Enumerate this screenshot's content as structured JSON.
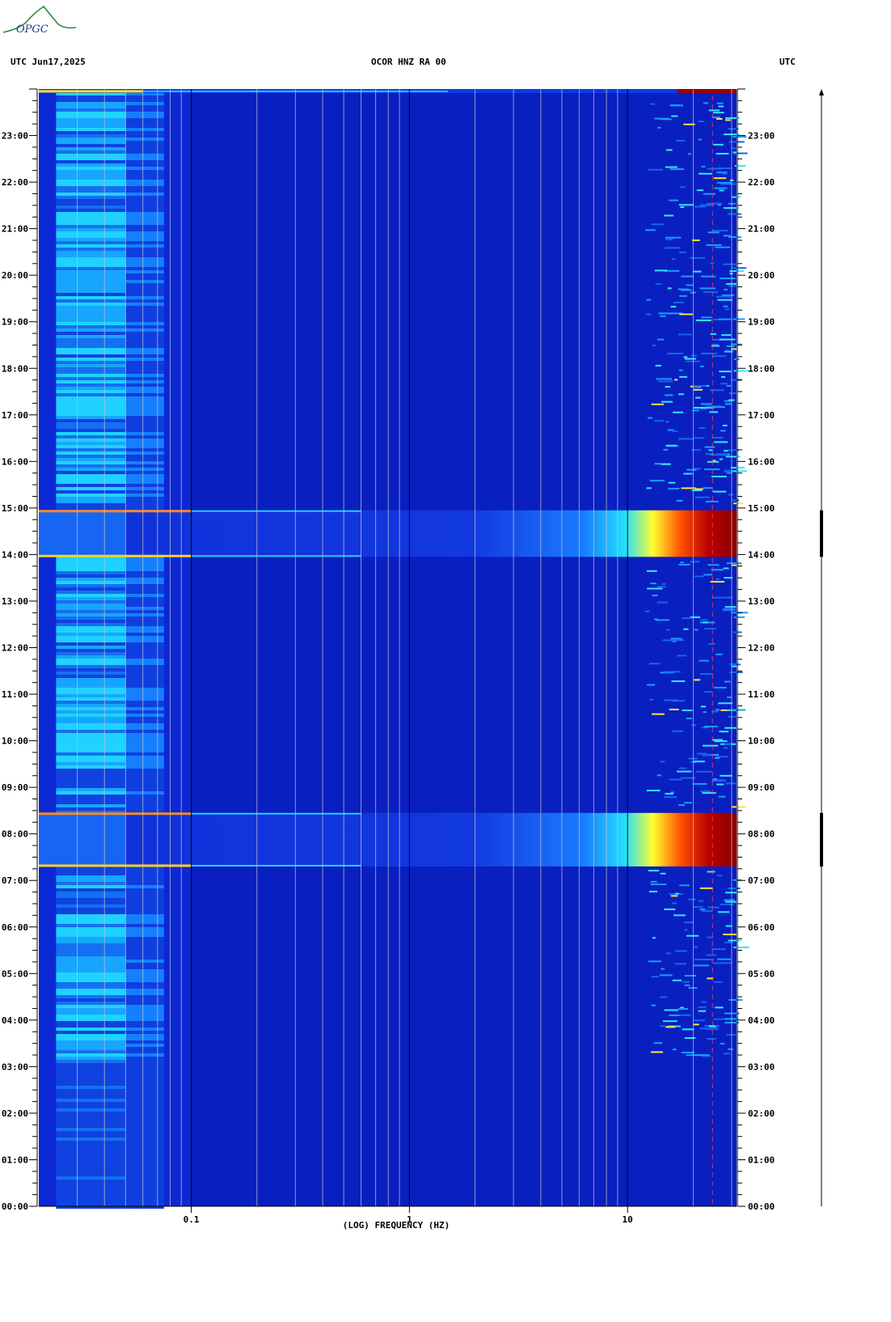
{
  "header": {
    "left": "UTC  Jun17,2025",
    "title": "OCOR HNZ RA 00",
    "right": "UTC"
  },
  "logo": {
    "icon": "ofgc-logo-icon",
    "text": "OPGC"
  },
  "chart_data": {
    "type": "heatmap",
    "title": "OCOR HNZ RA 00",
    "date": "Jun17,2025",
    "xlabel": "(LOG) FREQUENCY (HZ)",
    "ylabel": "UTC",
    "x_scale": "log",
    "x_range_hz": [
      0.02,
      31.6
    ],
    "x_ticks": [
      {
        "value": 0.1,
        "label": "0.1"
      },
      {
        "value": 1,
        "label": "1"
      },
      {
        "value": 10,
        "label": "10"
      }
    ],
    "y_range_hours": [
      0,
      24
    ],
    "y_ticks": [
      "00:00",
      "01:00",
      "02:00",
      "03:00",
      "04:00",
      "05:00",
      "06:00",
      "07:00",
      "08:00",
      "09:00",
      "10:00",
      "11:00",
      "12:00",
      "13:00",
      "14:00",
      "15:00",
      "16:00",
      "17:00",
      "18:00",
      "19:00",
      "20:00",
      "21:00",
      "22:00",
      "23:00"
    ],
    "colormap": [
      "#00008b",
      "#0000ff",
      "#0080ff",
      "#00e0ff",
      "#80ff80",
      "#ffff00",
      "#ff8000",
      "#ff0000",
      "#8b0000"
    ],
    "background_color": "#0a1fc0",
    "events": [
      {
        "start_hour": 13.95,
        "end_hour": 14.95,
        "description": "broadband high energy, strongest above 10 Hz"
      },
      {
        "start_hour": 7.3,
        "end_hour": 8.45,
        "description": "broadband high energy, strongest above 10 Hz"
      }
    ],
    "narrow_band_line_hz": 24.5
  }
}
